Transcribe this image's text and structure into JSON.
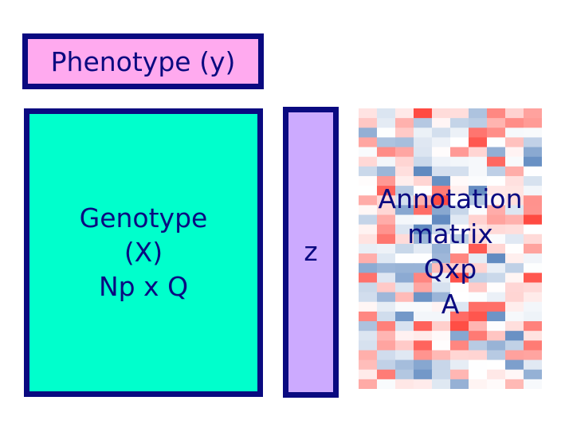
{
  "phenotype": {
    "label": "Phenotype (y)",
    "fill": "#ffaaef"
  },
  "genotype": {
    "line1": "Genotype",
    "line2": "(X)",
    "line3": "Np x Q",
    "fill": "#00ffcc"
  },
  "z_vector": {
    "label": "z",
    "fill": "#ccaaff"
  },
  "annotation": {
    "line1": "Annotation",
    "line2": "matrix",
    "line3": "Qxp",
    "line4": "A"
  },
  "colors": {
    "border": "#0a0a80",
    "text": "#0a0a80"
  },
  "heatmap": {
    "rows": 29,
    "cols": 10,
    "palette": "blue-white-red"
  }
}
